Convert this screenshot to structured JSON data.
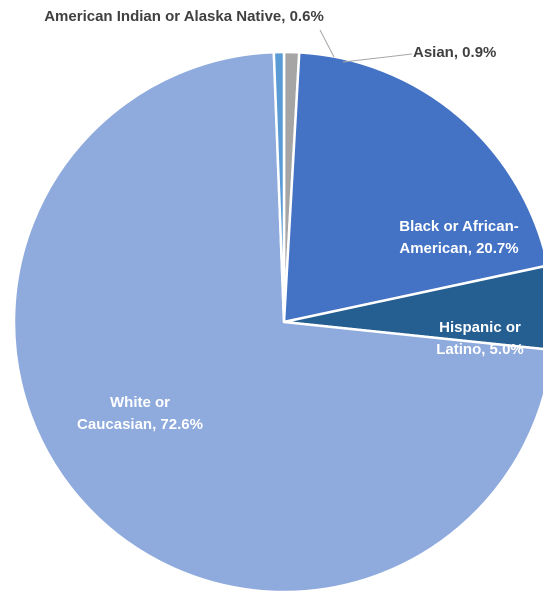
{
  "chart_data": {
    "type": "pie",
    "title": "",
    "start_angle_deg": 0,
    "direction": "clockwise",
    "slices": [
      {
        "label_lines": [
          "Asian, 0.9%"
        ],
        "name": "Asian",
        "value": 0.9,
        "color": "#a5a5a5",
        "label_style": "outside"
      },
      {
        "label_lines": [
          "Black or African-",
          "American, 20.7%"
        ],
        "name": "Black or African-American",
        "value": 20.7,
        "color": "#4472c4",
        "label_style": "inside"
      },
      {
        "label_lines": [
          "Hispanic or",
          "Latino, 5.0%"
        ],
        "name": "Hispanic or Latino",
        "value": 5.0,
        "color": "#255e91",
        "label_style": "inside"
      },
      {
        "label_lines": [
          "White or",
          "Caucasian, 72.6%"
        ],
        "name": "White or Caucasian",
        "value": 72.6,
        "color": "#8faadc",
        "label_style": "inside"
      },
      {
        "label_lines": [
          "American Indian or Alaska Native, 0.6%"
        ],
        "name": "American Indian or Alaska Native",
        "value": 0.6,
        "color": "#5b9bd5",
        "label_style": "outside"
      }
    ]
  }
}
